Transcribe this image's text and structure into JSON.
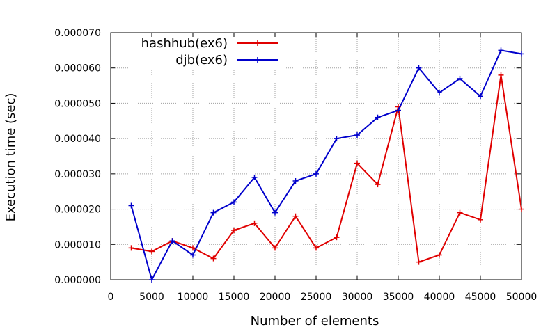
{
  "chart_data": {
    "type": "line",
    "xlabel": "Number of elements",
    "ylabel": "Execution time (sec)",
    "xlim": [
      0,
      50000
    ],
    "ylim": [
      0,
      7e-05
    ],
    "x_ticks": [
      "0",
      "5000",
      "10000",
      "15000",
      "20000",
      "25000",
      "30000",
      "35000",
      "40000",
      "45000",
      "50000"
    ],
    "y_ticks": [
      "0.000000",
      "0.000010",
      "0.000020",
      "0.000030",
      "0.000040",
      "0.000050",
      "0.000060",
      "0.000070"
    ],
    "x_tick_values": [
      0,
      5000,
      10000,
      15000,
      20000,
      25000,
      30000,
      35000,
      40000,
      45000,
      50000
    ],
    "y_tick_values": [
      0,
      1e-05,
      2e-05,
      3e-05,
      4e-05,
      5e-05,
      6e-05,
      7e-05
    ],
    "grid": true,
    "legend_position": "top-left",
    "x": [
      2500,
      5000,
      7500,
      10000,
      12500,
      15000,
      17500,
      20000,
      22500,
      25000,
      27500,
      30000,
      32500,
      35000,
      37500,
      40000,
      42500,
      45000,
      47500,
      50000
    ],
    "series": [
      {
        "name": "hashhub(ex6)",
        "color": "#e00000",
        "values": [
          9e-06,
          8e-06,
          1.1e-05,
          9e-06,
          6e-06,
          1.4e-05,
          1.6e-05,
          9e-06,
          1.8e-05,
          9e-06,
          1.2e-05,
          3.3e-05,
          2.7e-05,
          4.9e-05,
          5e-06,
          7e-06,
          1.9e-05,
          1.7e-05,
          5.8e-05,
          2e-05
        ]
      },
      {
        "name": "djb(ex6)",
        "color": "#0000cc",
        "values": [
          2.1e-05,
          0.0,
          1.1e-05,
          7e-06,
          1.9e-05,
          2.2e-05,
          2.9e-05,
          1.9e-05,
          2.8e-05,
          3e-05,
          4e-05,
          4.1e-05,
          4.6e-05,
          4.8e-05,
          6e-05,
          5.3e-05,
          5.7e-05,
          5.2e-05,
          6.5e-05,
          6.4e-05
        ]
      }
    ]
  }
}
